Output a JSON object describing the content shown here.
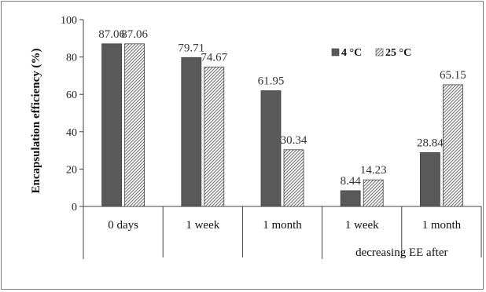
{
  "chart_data": {
    "type": "bar",
    "ylabel": "Encapsulation efficiency (%)",
    "ylim": [
      0,
      100
    ],
    "yticks": [
      0,
      20,
      40,
      60,
      80,
      100
    ],
    "categories": [
      "0 days",
      "1 week",
      "1 month",
      "1 week",
      "1 month"
    ],
    "group_label": "decreasing EE after",
    "series": [
      {
        "name": "4 °C",
        "values": [
          87.06,
          79.71,
          61.95,
          8.44,
          28.84
        ],
        "color": "#595959"
      },
      {
        "name": "25 °C",
        "values": [
          87.06,
          74.67,
          30.34,
          14.23,
          65.15
        ],
        "color": "#ffffff",
        "pattern": "diagonal-hatch"
      }
    ],
    "value_labels": [
      [
        "87.06",
        "79.71",
        "61.95",
        "8.44",
        "28.84"
      ],
      [
        "87.06",
        "74.67",
        "30.34",
        "14.23",
        "65.15"
      ]
    ],
    "legend_position": "top-right",
    "grid": false
  }
}
